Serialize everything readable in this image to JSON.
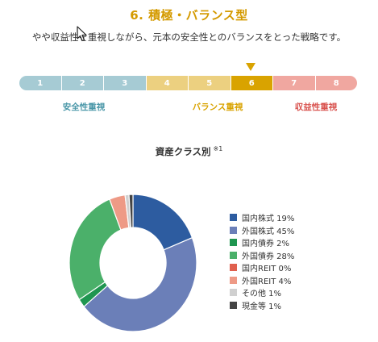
{
  "header": {
    "title": "6. 積極・バランス型",
    "subtitle": "やや収益性を重視しながら、元本の安全性とのバランスをとった戦略です。"
  },
  "scale": {
    "segments": [
      {
        "label": "1",
        "color": "#a6cbd4"
      },
      {
        "label": "2",
        "color": "#a6cbd4"
      },
      {
        "label": "3",
        "color": "#a6cbd4"
      },
      {
        "label": "4",
        "color": "#ecd080"
      },
      {
        "label": "5",
        "color": "#ecd080"
      },
      {
        "label": "6",
        "color": "#d9a300"
      },
      {
        "label": "7",
        "color": "#f0a7a0"
      },
      {
        "label": "8",
        "color": "#f0a7a0"
      }
    ],
    "selected": "6",
    "groups": [
      {
        "label": "安全性重視",
        "color": "#4a97a8"
      },
      {
        "label": "バランス重視",
        "color": "#d9a300"
      },
      {
        "label": "収益性重視",
        "color": "#d9534f"
      }
    ]
  },
  "chart": {
    "title": "資産クラス別",
    "note": "※1"
  },
  "chart_data": {
    "type": "pie",
    "donut": true,
    "title": "資産クラス別",
    "legend_position": "right",
    "series": [
      {
        "name": "国内株式",
        "value": 19,
        "label": "国内株式 19%",
        "color": "#2d5ca0"
      },
      {
        "name": "外国株式",
        "value": 45,
        "label": "外国株式 45%",
        "color": "#6b7fb8"
      },
      {
        "name": "国内債券",
        "value": 2,
        "label": "国内債券 2%",
        "color": "#1f9650"
      },
      {
        "name": "外国債券",
        "value": 28,
        "label": "外国債券 28%",
        "color": "#4bb06a"
      },
      {
        "name": "国内REIT",
        "value": 0,
        "label": "国内REIT 0%",
        "color": "#e0604e"
      },
      {
        "name": "外国REIT",
        "value": 4,
        "label": "外国REIT 4%",
        "color": "#ee9a86"
      },
      {
        "name": "その他",
        "value": 1,
        "label": "その他 1%",
        "color": "#d0d0d0"
      },
      {
        "name": "現金等",
        "value": 1,
        "label": "現金等 1%",
        "color": "#444444"
      }
    ]
  }
}
